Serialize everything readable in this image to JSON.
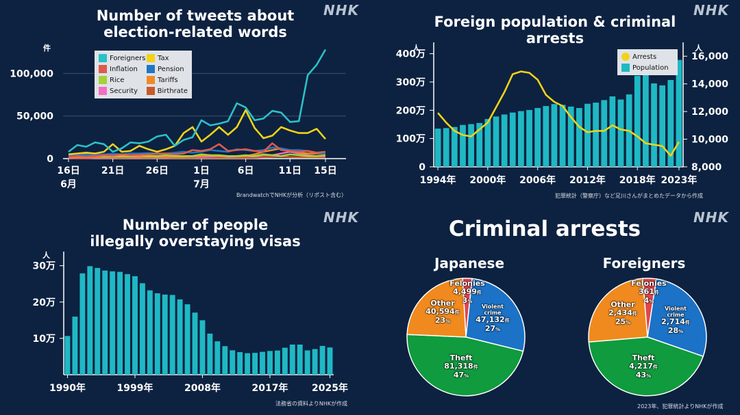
{
  "watermark": "NHK",
  "chart_data": [
    {
      "id": "tweets",
      "type": "line",
      "title": "Number of tweets about election-related words",
      "title_lines": [
        "Number of tweets about",
        "election-related words"
      ],
      "unit": "件",
      "source": "BrandwatchでNHKが分析（リポスト含む）",
      "ylim": [
        0,
        130000
      ],
      "yticks": [
        0,
        50000,
        100000
      ],
      "ytick_labels": [
        "0",
        "50,000",
        "100,000"
      ],
      "xticks": [
        {
          "i": 0,
          "label": "16日",
          "sub": "6月"
        },
        {
          "i": 5,
          "label": "21日",
          "sub": ""
        },
        {
          "i": 10,
          "label": "26日",
          "sub": ""
        },
        {
          "i": 15,
          "label": "1日",
          "sub": "7月"
        },
        {
          "i": 20,
          "label": "6日",
          "sub": ""
        },
        {
          "i": 25,
          "label": "11日",
          "sub": ""
        },
        {
          "i": 29,
          "label": "15日",
          "sub": ""
        }
      ],
      "series": [
        {
          "name": "Foreigners",
          "color": "#2cc0c8",
          "values": [
            8000,
            16000,
            14000,
            19000,
            17000,
            8000,
            12000,
            19000,
            18000,
            20000,
            26000,
            28000,
            15000,
            22000,
            25000,
            45000,
            39000,
            41000,
            44000,
            65000,
            60000,
            45000,
            47000,
            56000,
            54000,
            43000,
            44000,
            98000,
            110000,
            128000
          ]
        },
        {
          "name": "Tax",
          "color": "#f2d21a",
          "values": [
            5000,
            6000,
            7000,
            6000,
            8000,
            17000,
            8000,
            9000,
            15000,
            11000,
            8000,
            11000,
            15000,
            30000,
            37000,
            20000,
            28000,
            37000,
            28000,
            37000,
            57000,
            36000,
            24000,
            27000,
            37000,
            33000,
            30000,
            30000,
            35000,
            23000
          ]
        },
        {
          "name": "Inflation",
          "color": "#e05a4c",
          "values": [
            2000,
            3000,
            2500,
            3000,
            4000,
            3500,
            5000,
            4000,
            4500,
            5000,
            5500,
            6000,
            5000,
            6000,
            10000,
            9000,
            11000,
            17000,
            9000,
            10000,
            11000,
            9000,
            8000,
            18000,
            10000,
            9000,
            8000,
            9000,
            7000,
            8000
          ]
        },
        {
          "name": "Pension",
          "color": "#1f76c5",
          "values": [
            4000,
            4000,
            4500,
            5000,
            5000,
            5500,
            5000,
            6000,
            6000,
            6500,
            6000,
            6000,
            7000,
            8000,
            7000,
            8000,
            10000,
            9000,
            8000,
            11000,
            10000,
            9000,
            10000,
            13000,
            12000,
            10000,
            10000,
            9000,
            7000,
            6000
          ]
        },
        {
          "name": "Rice",
          "color": "#a4d23a",
          "values": [
            3000,
            3500,
            5000,
            3500,
            3000,
            3000,
            3000,
            3000,
            4000,
            3000,
            3000,
            4000,
            3000,
            3000,
            3000,
            5000,
            4000,
            4000,
            3000,
            3000,
            4000,
            3000,
            5000,
            4000,
            3000,
            5000,
            4000,
            3000,
            3000,
            4000
          ]
        },
        {
          "name": "Tariffs",
          "color": "#f08a2a",
          "values": [
            2000,
            2000,
            2000,
            2000,
            2000,
            2000,
            2000,
            2000,
            2000,
            2000,
            2000,
            2000,
            2000,
            2000,
            3000,
            3000,
            4000,
            3000,
            3000,
            3000,
            3000,
            5000,
            8000,
            10000,
            12000,
            9000,
            7000,
            6000,
            6000,
            6000
          ]
        },
        {
          "name": "Security",
          "color": "#f06fc0",
          "values": [
            1000,
            1500,
            1500,
            1500,
            1500,
            1500,
            2000,
            1500,
            1500,
            2000,
            1500,
            1500,
            2000,
            2000,
            2500,
            2000,
            2500,
            3000,
            2000,
            2500,
            3000,
            2500,
            4000,
            4000,
            6000,
            8000,
            6000,
            4000,
            3000,
            3000
          ]
        },
        {
          "name": "Birthrate",
          "color": "#c85a2a",
          "values": [
            500,
            500,
            500,
            800,
            800,
            800,
            800,
            800,
            800,
            800,
            800,
            800,
            800,
            800,
            800,
            1000,
            1000,
            1000,
            1000,
            1000,
            1000,
            1000,
            1500,
            2000,
            2500,
            2000,
            1500,
            1500,
            1500,
            1500
          ]
        }
      ]
    },
    {
      "id": "population",
      "type": "bar+line",
      "title": "Foreign population & criminal arrests",
      "unit_left": "人",
      "unit_right": "人",
      "source": "犯罪統計（警察庁）など足川さんがまとめたデータから作成",
      "years": [
        1994,
        1995,
        1996,
        1997,
        1998,
        1999,
        2000,
        2001,
        2002,
        2003,
        2004,
        2005,
        2006,
        2007,
        2008,
        2009,
        2010,
        2011,
        2012,
        2013,
        2014,
        2015,
        2016,
        2017,
        2018,
        2019,
        2020,
        2021,
        2022,
        2023
      ],
      "xtick_labels": [
        {
          "year": 1994,
          "label": "1994年"
        },
        {
          "year": 2000,
          "label": "2000年"
        },
        {
          "year": 2006,
          "label": "2006年"
        },
        {
          "year": 2012,
          "label": "2012年"
        },
        {
          "year": 2018,
          "label": "2018年"
        },
        {
          "year": 2023,
          "label": "2023年"
        }
      ],
      "left_ylim": [
        0,
        4400000
      ],
      "left_ticks": [
        0,
        1000000,
        2000000,
        3000000,
        4000000
      ],
      "left_tick_labels": [
        "0",
        "100万",
        "200万",
        "300万",
        "400万"
      ],
      "right_ylim": [
        8000,
        17000
      ],
      "right_ticks": [
        8000,
        10000,
        12000,
        14000,
        16000
      ],
      "right_tick_labels": [
        "8,000",
        "10,000",
        "12,000",
        "14,000",
        "16,000"
      ],
      "series": [
        {
          "name": "Population",
          "color": "#1fb8c4",
          "axis": "left",
          "values": [
            1350000,
            1370000,
            1410000,
            1480000,
            1510000,
            1550000,
            1690000,
            1780000,
            1850000,
            1920000,
            1970000,
            2010000,
            2080000,
            2150000,
            2220000,
            2190000,
            2130000,
            2080000,
            2230000,
            2270000,
            2360000,
            2490000,
            2380000,
            2560000,
            3220000,
            3460000,
            2950000,
            2880000,
            3070000,
            3780000
          ]
        },
        {
          "name": "Arrests",
          "color": "#f2d21a",
          "axis": "right",
          "values": [
            11900,
            11200,
            10600,
            10300,
            10200,
            10700,
            11200,
            12300,
            13400,
            14700,
            14900,
            14800,
            14300,
            13200,
            12700,
            12400,
            11600,
            10900,
            10500,
            10600,
            10600,
            11000,
            10700,
            10600,
            10200,
            9700,
            9600,
            9500,
            8800,
            9800
          ]
        }
      ]
    },
    {
      "id": "overstay",
      "type": "bar",
      "title": "Number of people illegally overstaying visas",
      "title_lines": [
        "Number of people",
        "illegally overstaying visas"
      ],
      "unit": "人",
      "source": "法務省の資料よりNHKが作成",
      "color": "#1fb8c4",
      "years": [
        1990,
        1991,
        1992,
        1993,
        1994,
        1995,
        1996,
        1997,
        1998,
        1999,
        2000,
        2001,
        2002,
        2003,
        2004,
        2005,
        2006,
        2007,
        2008,
        2009,
        2010,
        2011,
        2012,
        2013,
        2014,
        2015,
        2016,
        2017,
        2018,
        2019,
        2020,
        2021,
        2022,
        2023,
        2024,
        2025
      ],
      "values": [
        106497,
        159828,
        278892,
        298646,
        293800,
        286704,
        284500,
        283000,
        276810,
        271048,
        251697,
        232121,
        224067,
        220552,
        219418,
        207299,
        193745,
        170839,
        149785,
        113072,
        91778,
        78488,
        67065,
        62009,
        59061,
        60007,
        62818,
        65270,
        66498,
        74167,
        82892,
        82868,
        66759,
        70491,
        79113,
        74863
      ],
      "ylim": [
        0,
        320000
      ],
      "ticks": [
        100000,
        200000,
        300000
      ],
      "tick_labels": [
        "10万",
        "20万",
        "30万"
      ],
      "xtick_labels": [
        {
          "year": 1990,
          "label": "1990年"
        },
        {
          "year": 1999,
          "label": "1999年"
        },
        {
          "year": 2008,
          "label": "2008年"
        },
        {
          "year": 2017,
          "label": "2017年"
        },
        {
          "year": 2025,
          "label": "2025年"
        }
      ]
    },
    {
      "id": "arrests",
      "type": "pie",
      "title": "Criminal arrests",
      "source": "2023年、犯罪統計よりNHKが作成",
      "colors": {
        "Felonies": "#e0474c",
        "Violent crime": "#1b72c6",
        "Theft": "#0f9b3e",
        "Other": "#f08a1e"
      },
      "pies": [
        {
          "name": "Japanese",
          "slices": [
            {
              "label": "Felonies",
              "count": "4,499",
              "unit": "件",
              "percent": "3",
              "value": 4499
            },
            {
              "label": "Violent crime",
              "label_lines": [
                "Violent",
                "crime"
              ],
              "count": "47,132",
              "unit": "件",
              "percent": "27",
              "value": 47132
            },
            {
              "label": "Theft",
              "count": "81,318",
              "unit": "件",
              "percent": "47",
              "value": 81318
            },
            {
              "label": "Other",
              "count": "40,594",
              "unit": "件",
              "percent": "23",
              "value": 40594
            }
          ]
        },
        {
          "name": "Foreigners",
          "slices": [
            {
              "label": "Felonies",
              "count": "361",
              "unit": "件",
              "percent": "4",
              "value": 361
            },
            {
              "label": "Violent crime",
              "label_lines": [
                "Violent",
                "crime"
              ],
              "count": "2,714",
              "unit": "件",
              "percent": "28",
              "value": 2714
            },
            {
              "label": "Theft",
              "count": "4,217",
              "unit": "件",
              "percent": "43",
              "value": 4217
            },
            {
              "label": "Other",
              "count": "2,434",
              "unit": "件",
              "percent": "25",
              "value": 2434
            }
          ]
        }
      ],
      "percent_sign": "%"
    }
  ]
}
